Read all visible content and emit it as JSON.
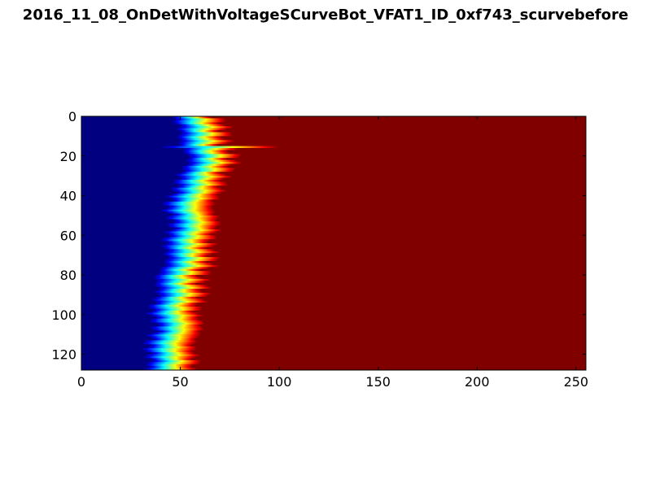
{
  "chart_data": {
    "type": "heatmap",
    "title": "2016_11_08_OnDetWithVoltageSCurveBot_VFAT1_ID_0xf743_scurvebefore",
    "xlabel": "",
    "ylabel": "",
    "xlim": [
      0,
      255
    ],
    "ylim": [
      128,
      0
    ],
    "x_ticks": [
      0,
      50,
      100,
      150,
      200,
      250
    ],
    "y_ticks": [
      0,
      20,
      40,
      60,
      80,
      100,
      120
    ],
    "colormap": "jet",
    "grid": false,
    "rows": 128,
    "columns": 256,
    "value_range": [
      0,
      1
    ],
    "turn_on_center_by_row_samples": [
      {
        "row": 0,
        "x": 52
      },
      {
        "row": 5,
        "x": 55
      },
      {
        "row": 10,
        "x": 57
      },
      {
        "row": 15,
        "x": 58
      },
      {
        "row": 20,
        "x": 60
      },
      {
        "row": 25,
        "x": 59
      },
      {
        "row": 30,
        "x": 57
      },
      {
        "row": 35,
        "x": 54
      },
      {
        "row": 40,
        "x": 51
      },
      {
        "row": 45,
        "x": 50
      },
      {
        "row": 50,
        "x": 52
      },
      {
        "row": 55,
        "x": 51
      },
      {
        "row": 60,
        "x": 50
      },
      {
        "row": 65,
        "x": 50
      },
      {
        "row": 70,
        "x": 49
      },
      {
        "row": 75,
        "x": 48
      },
      {
        "row": 80,
        "x": 46
      },
      {
        "row": 85,
        "x": 45
      },
      {
        "row": 90,
        "x": 44
      },
      {
        "row": 95,
        "x": 43
      },
      {
        "row": 100,
        "x": 43
      },
      {
        "row": 105,
        "x": 43
      },
      {
        "row": 110,
        "x": 42
      },
      {
        "row": 115,
        "x": 41
      },
      {
        "row": 120,
        "x": 40
      },
      {
        "row": 125,
        "x": 40
      },
      {
        "row": 127,
        "x": 38
      }
    ],
    "highlight_rows": [
      {
        "row": 15,
        "x_center": 88,
        "width": 30
      }
    ],
    "colors": {
      "low": "#00007f",
      "high": "#7f0000"
    }
  }
}
